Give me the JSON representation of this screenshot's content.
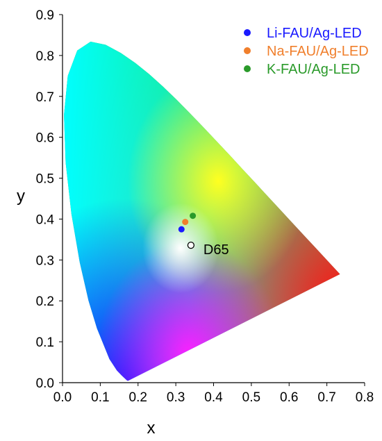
{
  "chart_data": {
    "type": "scatter",
    "title": "",
    "xlabel": "x",
    "ylabel": "y",
    "xlim": [
      0.0,
      0.8
    ],
    "ylim": [
      0.0,
      0.9
    ],
    "x_ticks": [
      "0.0",
      "0.1",
      "0.2",
      "0.3",
      "0.4",
      "0.5",
      "0.6",
      "0.7",
      "0.8"
    ],
    "y_ticks": [
      "0.0",
      "0.1",
      "0.2",
      "0.3",
      "0.4",
      "0.5",
      "0.6",
      "0.7",
      "0.8",
      "0.9"
    ],
    "grid": false,
    "legend_position": "top-right",
    "background": "CIE 1931 chromaticity diagram",
    "series": [
      {
        "name": "Li-FAU/Ag-LED",
        "color": "#1a1aff",
        "x": [
          0.315
        ],
        "y": [
          0.375
        ]
      },
      {
        "name": "Na-FAU/Ag-LED",
        "color": "#f07f2c",
        "x": [
          0.325
        ],
        "y": [
          0.393
        ]
      },
      {
        "name": "K-FAU/Ag-LED",
        "color": "#2a9a2a",
        "x": [
          0.345
        ],
        "y": [
          0.408
        ]
      }
    ],
    "annotations": [
      {
        "label": "D65",
        "x": 0.3127,
        "y": 0.329,
        "marker": "open-circle"
      }
    ]
  }
}
